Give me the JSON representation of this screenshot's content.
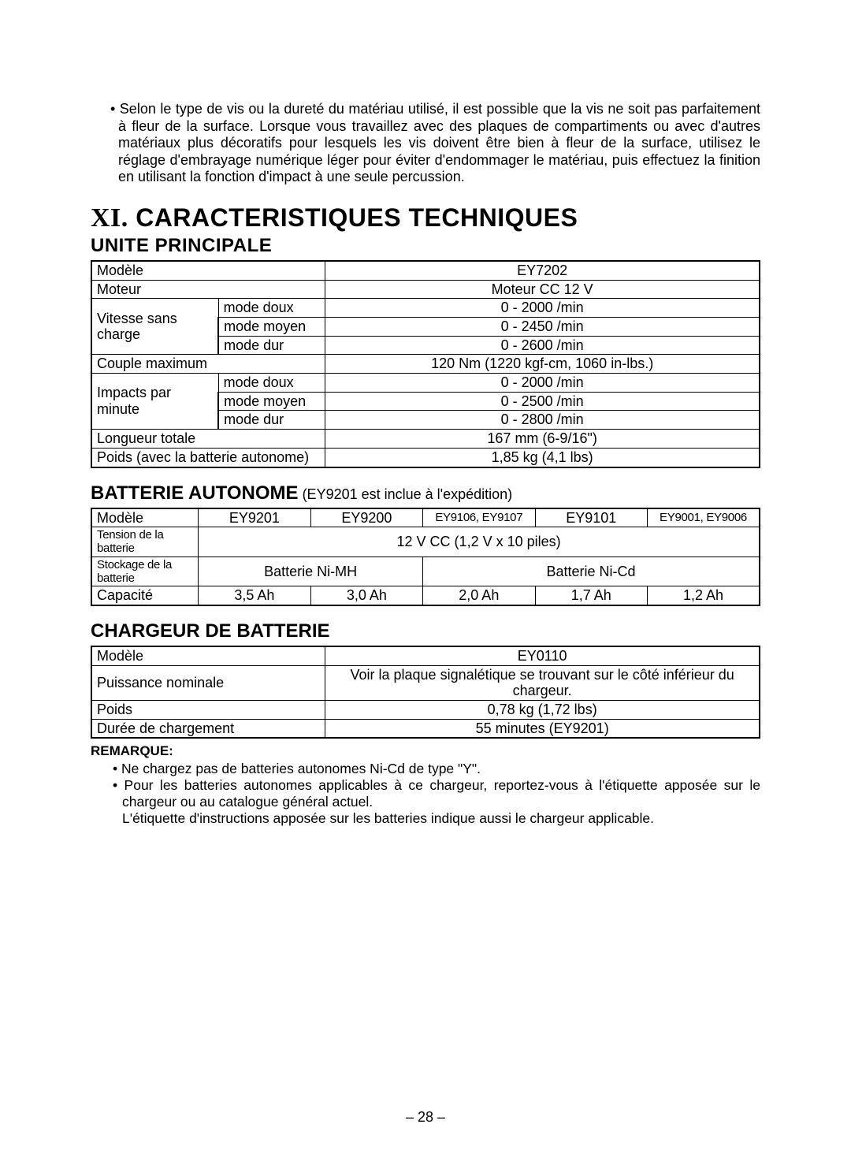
{
  "intro_bullet": "• ",
  "intro_text": "Selon le type de vis ou la dureté du matériau utilisé, il est possible que la vis ne soit pas parfaitement à fleur de la surface. Lorsque vous travaillez avec des plaques de compartiments ou avec d'autres matériaux plus décoratifs pour lesquels les vis doivent être bien à fleur de la surface, utilisez le réglage d'embrayage numérique léger pour éviter d'endommager le matériau, puis effectuez la finition en utilisant la fonction d'impact à une seule percussion.",
  "section_roman": "XI.",
  "section_title": " CARACTERISTIQUES TECHNIQUES",
  "unit_heading": "UNITE PRINCIPALE",
  "t1": {
    "model_label": "Modèle",
    "model_value": "EY7202",
    "motor_label": "Moteur",
    "motor_value": "Moteur CC 12 V",
    "noload_label": "Vitesse sans charge",
    "mode_soft": "mode doux",
    "mode_med": "mode moyen",
    "mode_hard": "mode dur",
    "noload_soft": "0 - 2000 /min",
    "noload_med": "0 - 2450  /min",
    "noload_hard": "0 - 2600  /min",
    "torque_label": "Couple maximum",
    "torque_value": "120 Nm (1220 kgf-cm, 1060 in-lbs.)",
    "ipm_label": "Impacts par minute",
    "ipm_soft": "0 - 2000 /min",
    "ipm_med": "0 - 2500 /min",
    "ipm_hard": "0 - 2800 /min",
    "length_label": "Longueur totale",
    "length_value": "167 mm (6-9/16\")",
    "weight_label": "Poids (avec la batterie autonome)",
    "weight_value": "1,85 kg (4,1 lbs)"
  },
  "battery_heading": "BATTERIE AUTONOME",
  "battery_heading_note": " (EY9201 est inclue à l'expédition)",
  "t2": {
    "model_label": "Modèle",
    "m1": "EY9201",
    "m2": "EY9200",
    "m3": "EY9106, EY9107",
    "m4": "EY9101",
    "m5": "EY9001, EY9006",
    "voltage_label": "Tension de la batterie",
    "voltage_value": "12 V CC (1,2 V x 10 piles)",
    "storage_label": "Stockage de la batterie",
    "nimh": "Batterie Ni-MH",
    "nicd": "Batterie Ni-Cd",
    "capacity_label": "Capacité",
    "c1": "3,5 Ah",
    "c2": "3,0 Ah",
    "c3": "2,0 Ah",
    "c4": "1,7 Ah",
    "c5": "1,2 Ah"
  },
  "charger_heading": "CHARGEUR DE BATTERIE",
  "t3": {
    "model_label": "Modèle",
    "model_value": "EY0110",
    "power_label": "Puissance nominale",
    "power_value": "Voir la plaque signalétique se trouvant sur le côté inférieur du chargeur.",
    "weight_label": "Poids",
    "weight_value": "0,78 kg (1,72 lbs)",
    "time_label": "Durée de chargement",
    "time_value": "55 minutes (EY9201)"
  },
  "remarque_label": "REMARQUE:",
  "note1": "• Ne chargez pas de batteries autonomes Ni-Cd de type \"Y\".",
  "note2": "• Pour les batteries autonomes applicables à ce chargeur, reportez-vous à l'étiquette apposée sur le chargeur ou au catalogue général actuel.",
  "note3": "L'étiquette d'instructions apposée sur les batteries indique aussi le chargeur applicable.",
  "page_number": "– 28 –"
}
